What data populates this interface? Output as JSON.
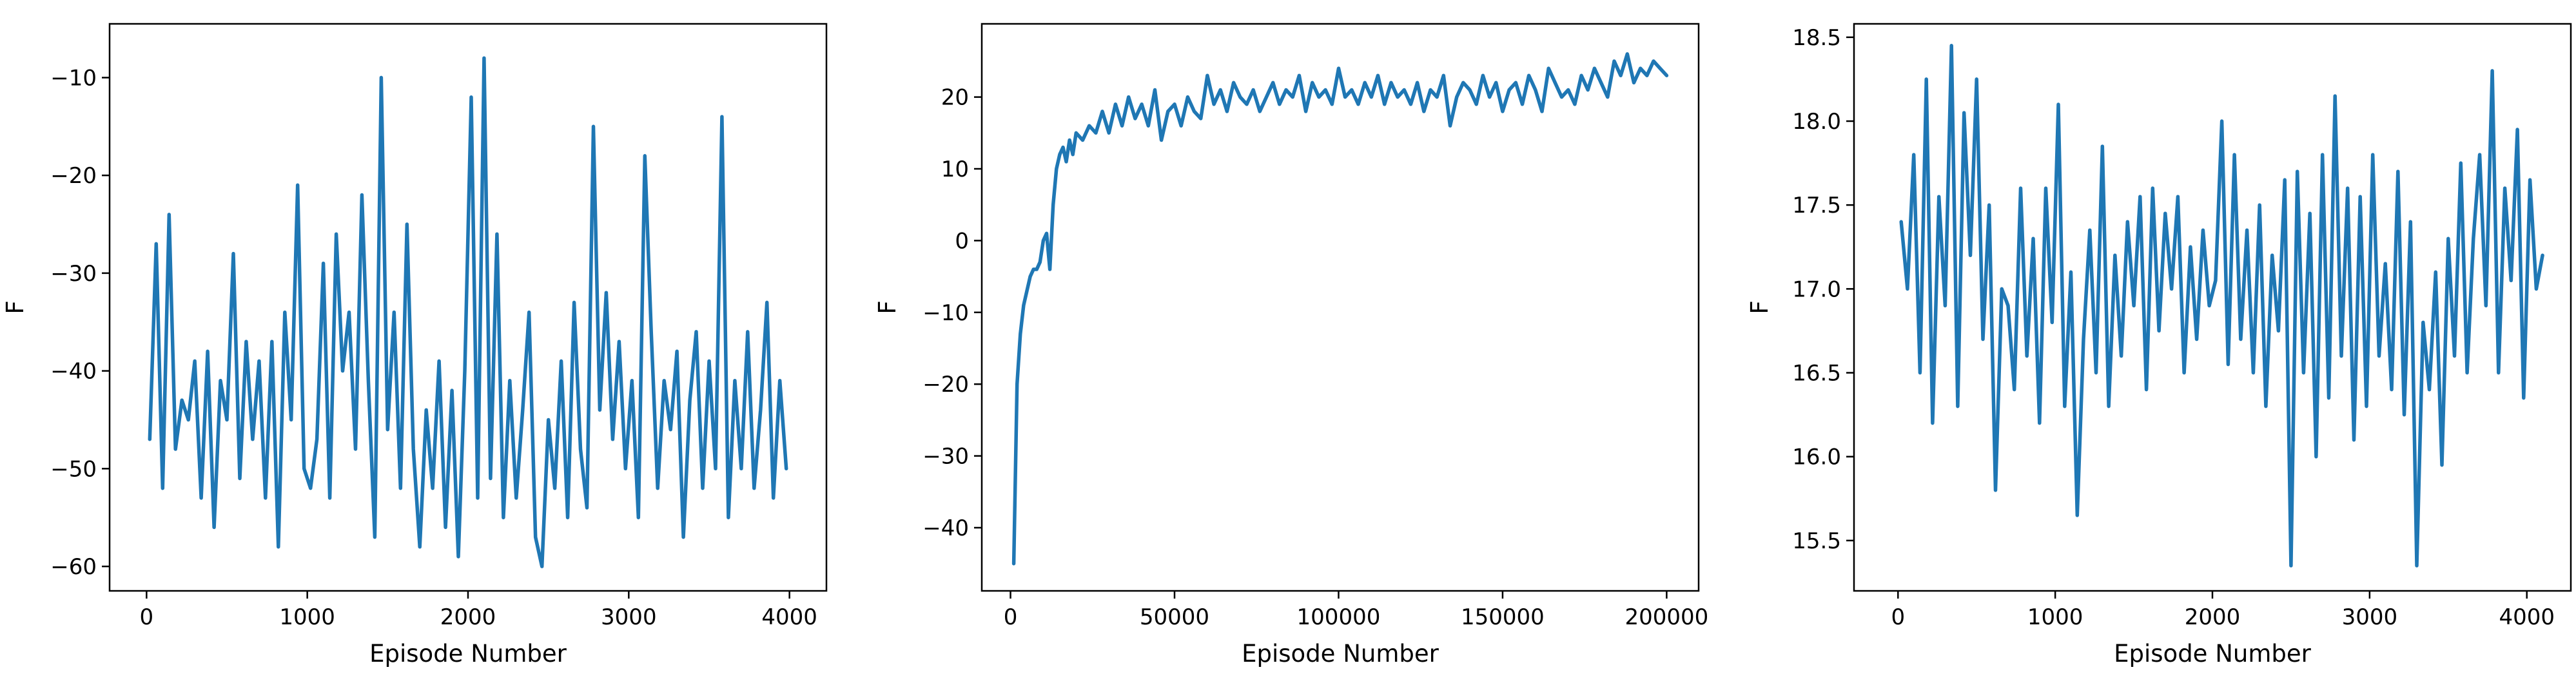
{
  "chart_data": [
    {
      "type": "line",
      "xlabel": "Episode Number",
      "ylabel": "F",
      "xlim": [
        -230,
        4230
      ],
      "ylim": [
        -62.5,
        -4.5
      ],
      "xticks": [
        0,
        1000,
        2000,
        3000,
        4000
      ],
      "xtick_labels": [
        "0",
        "1000",
        "2000",
        "3000",
        "4000"
      ],
      "yticks": [
        -60,
        -50,
        -40,
        -30,
        -20,
        -10
      ],
      "ytick_labels": [
        "−60",
        "−50",
        "−40",
        "−30",
        "−20",
        "−10"
      ],
      "series": [
        {
          "color": "#1f77b4",
          "x": [
            20,
            60,
            100,
            140,
            180,
            220,
            260,
            300,
            340,
            380,
            420,
            460,
            500,
            540,
            580,
            620,
            660,
            700,
            740,
            780,
            820,
            860,
            900,
            940,
            980,
            1020,
            1060,
            1100,
            1140,
            1180,
            1220,
            1260,
            1300,
            1340,
            1380,
            1420,
            1460,
            1500,
            1540,
            1580,
            1620,
            1660,
            1700,
            1740,
            1780,
            1820,
            1860,
            1900,
            1940,
            1980,
            2020,
            2060,
            2100,
            2140,
            2180,
            2220,
            2260,
            2300,
            2340,
            2380,
            2420,
            2460,
            2500,
            2540,
            2580,
            2620,
            2660,
            2700,
            2740,
            2780,
            2820,
            2860,
            2900,
            2940,
            2980,
            3020,
            3060,
            3100,
            3140,
            3180,
            3220,
            3260,
            3300,
            3340,
            3380,
            3420,
            3460,
            3500,
            3540,
            3580,
            3620,
            3660,
            3700,
            3740,
            3780,
            3820,
            3860,
            3900,
            3940,
            3980
          ],
          "y": [
            -47,
            -27,
            -52,
            -24,
            -48,
            -43,
            -45,
            -39,
            -53,
            -38,
            -56,
            -41,
            -45,
            -28,
            -51,
            -37,
            -47,
            -39,
            -53,
            -37,
            -58,
            -34,
            -45,
            -21,
            -50,
            -52,
            -47,
            -29,
            -53,
            -26,
            -40,
            -34,
            -48,
            -22,
            -41,
            -57,
            -10,
            -46,
            -34,
            -52,
            -25,
            -48,
            -58,
            -44,
            -52,
            -39,
            -56,
            -42,
            -59,
            -40,
            -12,
            -53,
            -8,
            -51,
            -26,
            -55,
            -41,
            -53,
            -44,
            -34,
            -57,
            -60,
            -45,
            -52,
            -39,
            -55,
            -33,
            -48,
            -54,
            -15,
            -44,
            -32,
            -47,
            -37,
            -50,
            -41,
            -55,
            -18,
            -36,
            -52,
            -41,
            -46,
            -38,
            -57,
            -43,
            -36,
            -52,
            -39,
            -50,
            -14,
            -55,
            -41,
            -50,
            -36,
            -52,
            -44,
            -33,
            -53,
            -41,
            -50
          ]
        }
      ]
    },
    {
      "type": "line",
      "xlabel": "Episode Number",
      "ylabel": "F",
      "xlim": [
        -8750,
        209750
      ],
      "ylim": [
        -48.8,
        30.2
      ],
      "xticks": [
        0,
        50000,
        100000,
        150000,
        200000
      ],
      "xtick_labels": [
        "0",
        "50000",
        "100000",
        "150000",
        "200000"
      ],
      "yticks": [
        -40,
        -30,
        -20,
        -10,
        0,
        10,
        20
      ],
      "ytick_labels": [
        "−40",
        "−30",
        "−20",
        "−10",
        "0",
        "10",
        "20"
      ],
      "series": [
        {
          "color": "#1f77b4",
          "x": [
            1000,
            2000,
            3000,
            4000,
            5000,
            6000,
            7000,
            8000,
            9000,
            10000,
            11000,
            12000,
            13000,
            14000,
            15000,
            16000,
            17000,
            18000,
            19000,
            20000,
            22000,
            24000,
            26000,
            28000,
            30000,
            32000,
            34000,
            36000,
            38000,
            40000,
            42000,
            44000,
            46000,
            48000,
            50000,
            52000,
            54000,
            56000,
            58000,
            60000,
            62000,
            64000,
            66000,
            68000,
            70000,
            72000,
            74000,
            76000,
            78000,
            80000,
            82000,
            84000,
            86000,
            88000,
            90000,
            92000,
            94000,
            96000,
            98000,
            100000,
            102000,
            104000,
            106000,
            108000,
            110000,
            112000,
            114000,
            116000,
            118000,
            120000,
            122000,
            124000,
            126000,
            128000,
            130000,
            132000,
            134000,
            136000,
            138000,
            140000,
            142000,
            144000,
            146000,
            148000,
            150000,
            152000,
            154000,
            156000,
            158000,
            160000,
            162000,
            164000,
            166000,
            168000,
            170000,
            172000,
            174000,
            176000,
            178000,
            180000,
            182000,
            184000,
            186000,
            188000,
            190000,
            192000,
            194000,
            196000,
            198000,
            200000
          ],
          "y": [
            -45,
            -20,
            -13,
            -9,
            -7,
            -5,
            -4,
            -4,
            -3,
            0,
            1,
            -4,
            5,
            10,
            12,
            13,
            11,
            14,
            12,
            15,
            14,
            16,
            15,
            18,
            15,
            19,
            16,
            20,
            17,
            19,
            16,
            21,
            14,
            18,
            19,
            16,
            20,
            18,
            17,
            23,
            19,
            21,
            18,
            22,
            20,
            19,
            21,
            18,
            20,
            22,
            19,
            21,
            20,
            23,
            18,
            22,
            20,
            21,
            19,
            24,
            20,
            21,
            19,
            22,
            20,
            23,
            19,
            22,
            20,
            21,
            19,
            22,
            18,
            21,
            20,
            23,
            16,
            20,
            22,
            21,
            19,
            23,
            20,
            22,
            18,
            21,
            22,
            19,
            23,
            21,
            18,
            24,
            22,
            20,
            21,
            19,
            23,
            21,
            24,
            22,
            20,
            25,
            23,
            26,
            22,
            24,
            23,
            25,
            24,
            23
          ]
        }
      ]
    },
    {
      "type": "line",
      "xlabel": "Episode Number",
      "ylabel": "F",
      "xlim": [
        -280,
        4280
      ],
      "ylim": [
        15.2,
        18.58
      ],
      "xticks": [
        0,
        1000,
        2000,
        3000,
        4000
      ],
      "xtick_labels": [
        "0",
        "1000",
        "2000",
        "3000",
        "4000"
      ],
      "yticks": [
        15.5,
        16.0,
        16.5,
        17.0,
        17.5,
        18.0,
        18.5
      ],
      "ytick_labels": [
        "15.5",
        "16.0",
        "16.5",
        "17.0",
        "17.5",
        "18.0",
        "18.5"
      ],
      "series": [
        {
          "color": "#1f77b4",
          "x": [
            20,
            60,
            100,
            140,
            180,
            220,
            260,
            300,
            340,
            380,
            420,
            460,
            500,
            540,
            580,
            620,
            660,
            700,
            740,
            780,
            820,
            860,
            900,
            940,
            980,
            1020,
            1060,
            1100,
            1140,
            1180,
            1220,
            1260,
            1300,
            1340,
            1380,
            1420,
            1460,
            1500,
            1540,
            1580,
            1620,
            1660,
            1700,
            1740,
            1780,
            1820,
            1860,
            1900,
            1940,
            1980,
            2020,
            2060,
            2100,
            2140,
            2180,
            2220,
            2260,
            2300,
            2340,
            2380,
            2420,
            2460,
            2500,
            2540,
            2580,
            2620,
            2660,
            2700,
            2740,
            2780,
            2820,
            2860,
            2900,
            2940,
            2980,
            3020,
            3060,
            3100,
            3140,
            3180,
            3220,
            3260,
            3300,
            3340,
            3380,
            3420,
            3460,
            3500,
            3540,
            3580,
            3620,
            3660,
            3700,
            3740,
            3780,
            3820,
            3860,
            3900,
            3940,
            3980,
            4020,
            4060,
            4100
          ],
          "y": [
            17.4,
            17.0,
            17.8,
            16.5,
            18.25,
            16.2,
            17.55,
            16.9,
            18.45,
            16.3,
            18.05,
            17.2,
            18.25,
            16.7,
            17.5,
            15.8,
            17.0,
            16.9,
            16.4,
            17.6,
            16.6,
            17.3,
            16.2,
            17.6,
            16.8,
            18.1,
            16.3,
            17.1,
            15.65,
            16.7,
            17.35,
            16.5,
            17.85,
            16.3,
            17.2,
            16.6,
            17.4,
            16.9,
            17.55,
            16.4,
            17.6,
            16.75,
            17.45,
            17.0,
            17.55,
            16.5,
            17.25,
            16.7,
            17.35,
            16.9,
            17.05,
            18.0,
            16.55,
            17.8,
            16.7,
            17.35,
            16.5,
            17.5,
            16.3,
            17.2,
            16.75,
            17.65,
            15.35,
            17.7,
            16.5,
            17.45,
            16.0,
            17.8,
            16.35,
            18.15,
            16.6,
            17.6,
            16.1,
            17.55,
            16.3,
            17.8,
            16.6,
            17.15,
            16.4,
            17.7,
            16.25,
            17.4,
            15.35,
            16.8,
            16.4,
            17.1,
            15.95,
            17.3,
            16.6,
            17.75,
            16.5,
            17.3,
            17.8,
            16.9,
            18.3,
            16.5,
            17.6,
            17.05,
            17.95,
            16.35,
            17.65,
            17.0,
            17.2
          ]
        }
      ]
    }
  ]
}
